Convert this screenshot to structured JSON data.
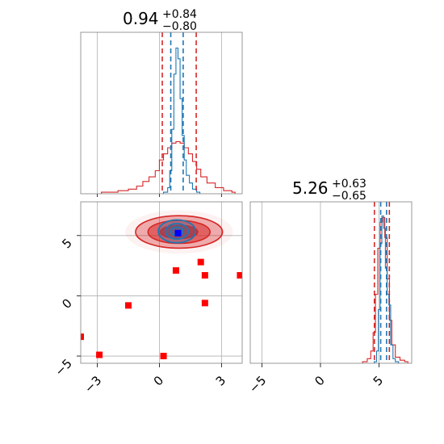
{
  "chart_data": {
    "type": "corner",
    "parameters": [
      {
        "title": {
          "median": "0.94",
          "upper": "+0.84",
          "lower": "−0.80"
        },
        "range": [
          -3.8,
          4.0
        ],
        "ticks": [
          -3,
          0,
          3
        ],
        "tick_labels": [
          "−3",
          "0",
          "3"
        ],
        "median": 0.94,
        "lower_error": 0.8,
        "upper_error": 0.84
      },
      {
        "title": {
          "median": "5.26",
          "upper": "+0.63",
          "lower": "−0.65"
        },
        "range": [
          -6.0,
          7.8
        ],
        "ticks": [
          -5,
          0,
          5
        ],
        "tick_labels": [
          "−5",
          "0",
          "5"
        ],
        "median": 5.26,
        "lower_error": 0.65,
        "upper_error": 0.63
      }
    ],
    "joint_y_range": [
      -5.6,
      7.8
    ],
    "grid": true,
    "series": [
      {
        "color": "#d62728",
        "quantile_lines": [
          0.14,
          1.78
        ],
        "quantile_lines_p2": [
          4.61,
          5.89
        ],
        "hist1d_p1": [
          [
            -2.8,
            0.01
          ],
          [
            -2.0,
            0.02
          ],
          [
            -1.5,
            0.03
          ],
          [
            -1.1,
            0.05
          ],
          [
            -0.8,
            0.08
          ],
          [
            -0.5,
            0.11
          ],
          [
            -0.2,
            0.15
          ],
          [
            0.0,
            0.22
          ],
          [
            0.2,
            0.26
          ],
          [
            0.4,
            0.3
          ],
          [
            0.6,
            0.33
          ],
          [
            0.8,
            0.34
          ],
          [
            1.0,
            0.33
          ],
          [
            1.2,
            0.3
          ],
          [
            1.4,
            0.26
          ],
          [
            1.6,
            0.21
          ],
          [
            1.8,
            0.16
          ],
          [
            2.0,
            0.11
          ],
          [
            2.3,
            0.07
          ],
          [
            2.7,
            0.04
          ],
          [
            3.1,
            0.02
          ],
          [
            3.5,
            0.01
          ]
        ],
        "hist1d_p2": [
          [
            3.6,
            0.01
          ],
          [
            4.0,
            0.03
          ],
          [
            4.3,
            0.08
          ],
          [
            4.5,
            0.2
          ],
          [
            4.7,
            0.45
          ],
          [
            4.9,
            0.75
          ],
          [
            5.1,
            0.92
          ],
          [
            5.3,
            0.95
          ],
          [
            5.5,
            0.82
          ],
          [
            5.7,
            0.55
          ],
          [
            5.9,
            0.28
          ],
          [
            6.1,
            0.12
          ],
          [
            6.4,
            0.04
          ],
          [
            6.8,
            0.02
          ],
          [
            7.2,
            0.01
          ]
        ],
        "scatter_outliers": [
          [
            -3.8,
            -3.4
          ],
          [
            -2.9,
            -4.9
          ],
          [
            -1.5,
            -0.8
          ],
          [
            0.2,
            -5.0
          ],
          [
            0.8,
            2.1
          ],
          [
            2.0,
            2.8
          ],
          [
            2.2,
            1.7
          ],
          [
            2.2,
            -0.6
          ],
          [
            3.9,
            1.7
          ]
        ],
        "contour_levels": [
          {
            "center": [
              0.95,
              5.3
            ],
            "rx": 2.1,
            "ry": 1.35
          },
          {
            "center": [
              0.95,
              5.3
            ],
            "rx": 1.5,
            "ry": 0.95
          },
          {
            "center": [
              0.95,
              5.3
            ],
            "rx": 0.9,
            "ry": 0.55
          }
        ]
      },
      {
        "color": "#1f77b4",
        "quantile_lines": [
          0.55,
          1.15
        ],
        "quantile_lines_p2": [
          5.15,
          5.65
        ],
        "hist1d_p1": [
          [
            0.2,
            0.01
          ],
          [
            0.4,
            0.04
          ],
          [
            0.5,
            0.15
          ],
          [
            0.6,
            0.42
          ],
          [
            0.7,
            0.78
          ],
          [
            0.8,
            0.95
          ],
          [
            0.9,
            0.88
          ],
          [
            1.0,
            0.62
          ],
          [
            1.1,
            0.38
          ],
          [
            1.2,
            0.22
          ],
          [
            1.3,
            0.12
          ],
          [
            1.45,
            0.07
          ],
          [
            1.6,
            0.03
          ],
          [
            1.8,
            0.01
          ]
        ],
        "hist1d_p2": [
          [
            4.6,
            0.01
          ],
          [
            4.8,
            0.08
          ],
          [
            4.95,
            0.35
          ],
          [
            5.1,
            0.78
          ],
          [
            5.25,
            0.96
          ],
          [
            5.4,
            0.88
          ],
          [
            5.55,
            0.62
          ],
          [
            5.7,
            0.45
          ],
          [
            5.85,
            0.38
          ],
          [
            6.0,
            0.12
          ],
          [
            6.2,
            0.03
          ],
          [
            6.4,
            0.01
          ]
        ],
        "contour_levels": [
          {
            "center": [
              0.85,
              5.35
            ],
            "rx": 0.9,
            "ry": 0.95
          },
          {
            "center": [
              0.85,
              5.35
            ],
            "rx": 0.55,
            "ry": 0.65
          },
          {
            "center": [
              0.85,
              5.35
            ],
            "rx": 0.3,
            "ry": 0.35
          }
        ]
      }
    ],
    "truth_marker": {
      "x": 0.9,
      "y": 5.2,
      "color": "#0000ff"
    }
  }
}
